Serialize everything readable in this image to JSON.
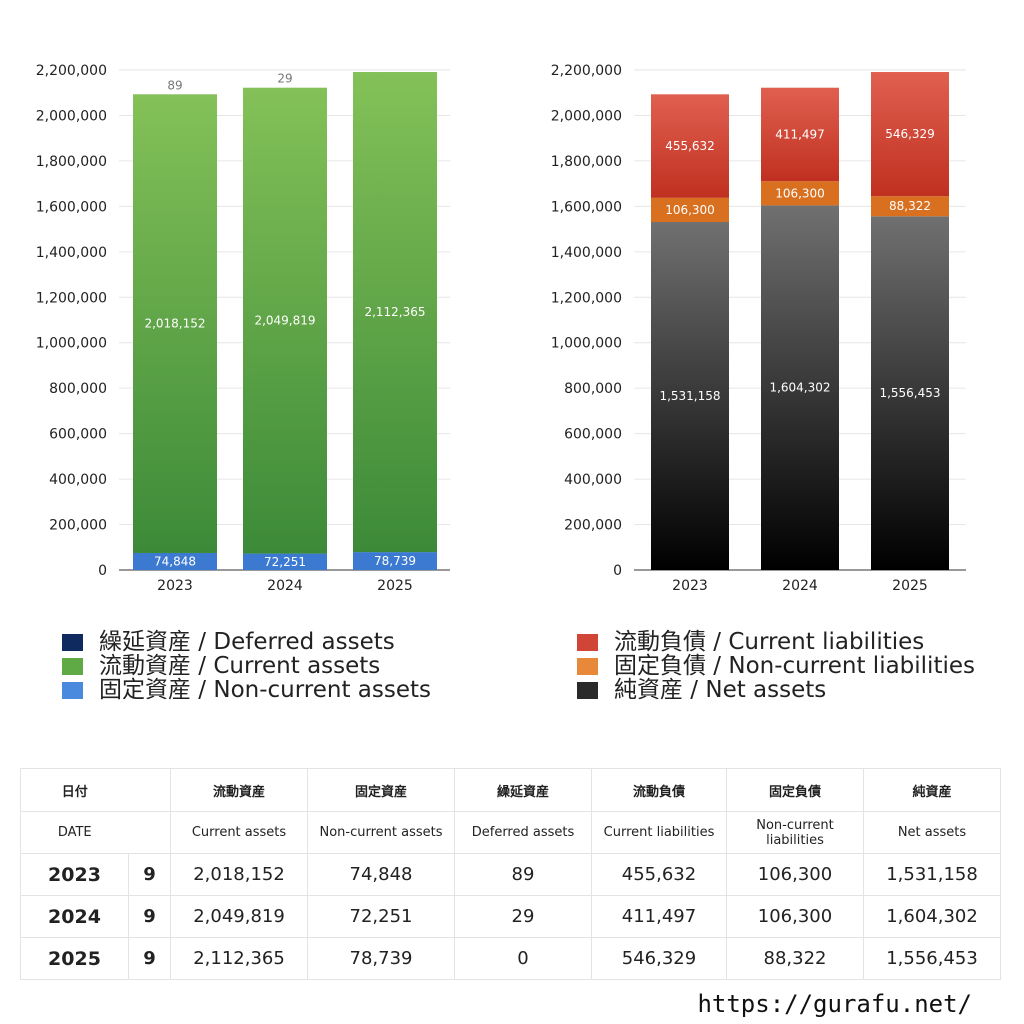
{
  "chart_data": [
    {
      "type": "bar",
      "stacked": true,
      "categories": [
        "2023",
        "2024",
        "2025"
      ],
      "ylim": [
        0,
        2200000
      ],
      "yticks": [
        0,
        200000,
        400000,
        600000,
        800000,
        1000000,
        1200000,
        1400000,
        1600000,
        1800000,
        2000000,
        2200000
      ],
      "grid": true,
      "series": [
        {
          "name": "固定資産 / Non-current assets",
          "values": [
            74848,
            72251,
            78739
          ],
          "color_top": "#5b9ae6",
          "color_bottom": "#3b7ad0"
        },
        {
          "name": "流動資産 / Current assets",
          "values": [
            2018152,
            2049819,
            2112365
          ],
          "color_top": "#84c158",
          "color_bottom": "#3c8a38"
        },
        {
          "name": "繰延資産 / Deferred assets",
          "values": [
            89,
            29,
            0
          ],
          "color_top": "#1a3a7a",
          "color_bottom": "#0e2a5e"
        }
      ],
      "data_labels": [
        [
          "74,848",
          "72,251",
          "78,739"
        ],
        [
          "2,018,152",
          "2,049,819",
          "2,112,365"
        ],
        [
          "89",
          "29",
          ""
        ]
      ]
    },
    {
      "type": "bar",
      "stacked": true,
      "categories": [
        "2023",
        "2024",
        "2025"
      ],
      "ylim": [
        0,
        2200000
      ],
      "yticks": [
        0,
        200000,
        400000,
        600000,
        800000,
        1000000,
        1200000,
        1400000,
        1600000,
        1800000,
        2000000,
        2200000
      ],
      "grid": true,
      "series": [
        {
          "name": "純資産 / Net assets",
          "values": [
            1531158,
            1604302,
            1556453
          ],
          "color_top": "#707070",
          "color_bottom": "#000000"
        },
        {
          "name": "固定負債 / Non-current liabilities",
          "values": [
            106300,
            106300,
            88322
          ],
          "color_top": "#f0a050",
          "color_bottom": "#d87020"
        },
        {
          "name": "流動負債 / Current liabilities",
          "values": [
            455632,
            411497,
            546329
          ],
          "color_top": "#e06050",
          "color_bottom": "#c03020"
        }
      ],
      "data_labels": [
        [
          "1,531,158",
          "1,604,302",
          "1,556,453"
        ],
        [
          "106,300",
          "106,300",
          "88,322"
        ],
        [
          "455,632",
          "411,497",
          "546,329"
        ]
      ]
    }
  ],
  "legend_left": [
    {
      "label": "繰延資産 / Deferred assets",
      "color": "#0e2a5e"
    },
    {
      "label": "流動資産 / Current assets",
      "color": "#5faa45"
    },
    {
      "label": "固定資産 / Non-current assets",
      "color": "#4a8ade"
    }
  ],
  "legend_right": [
    {
      "label": "流動負債 / Current liabilities",
      "color": "#d04535"
    },
    {
      "label": "固定負債 / Non-current liabilities",
      "color": "#e8883a"
    },
    {
      "label": "純資産 / Net assets",
      "color": "#2a2a2a"
    }
  ],
  "table": {
    "header_jp": [
      "日付",
      "",
      "流動資産",
      "固定資産",
      "繰延資産",
      "流動負債",
      "固定負債",
      "純資産"
    ],
    "header_en": [
      "DATE",
      "",
      "Current assets",
      "Non-current assets",
      "Deferred assets",
      "Current liabilities",
      "Non-current liabilities",
      "Net assets"
    ],
    "rows": [
      [
        "2023",
        "9",
        "2,018,152",
        "74,848",
        "89",
        "455,632",
        "106,300",
        "1,531,158"
      ],
      [
        "2024",
        "9",
        "2,049,819",
        "72,251",
        "29",
        "411,497",
        "106,300",
        "1,604,302"
      ],
      [
        "2025",
        "9",
        "2,112,365",
        "78,739",
        "0",
        "546,329",
        "88,322",
        "1,556,453"
      ]
    ]
  },
  "footer": {
    "url": "https://gurafu.net/"
  }
}
